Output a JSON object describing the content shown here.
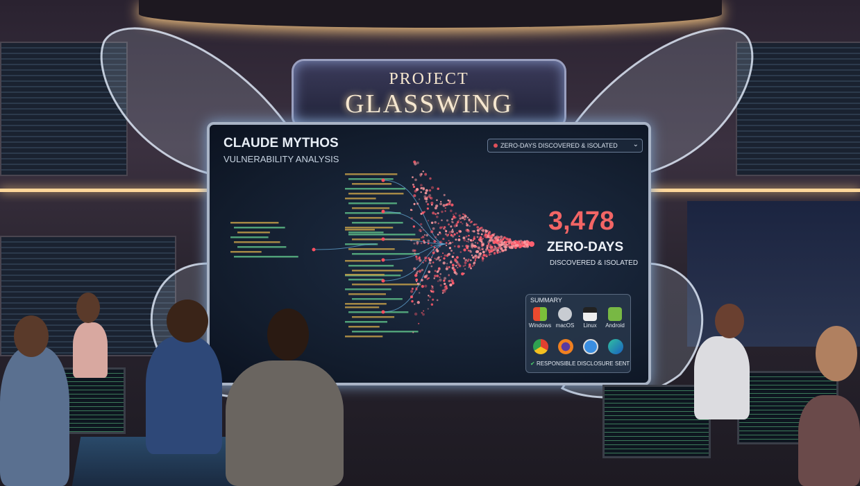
{
  "sign": {
    "line1": "PROJECT",
    "line2": "GLASSWING"
  },
  "screen": {
    "title": "CLAUDE MYTHOS",
    "subtitle": "VULNERABILITY ANALYSIS",
    "dropdown": {
      "label": "ZERO-DAYS DISCOVERED & ISOLATED",
      "icon": "chevron-down-icon"
    },
    "stat": {
      "value": "3,478",
      "label": "ZERO-DAYS",
      "sublabel": "DISCOVERED & ISOLATED"
    },
    "summary": {
      "title": "SUMMARY",
      "os": [
        {
          "label": "Windows",
          "icon": "windows-icon"
        },
        {
          "label": "macOS",
          "icon": "apple-icon"
        },
        {
          "label": "Linux",
          "icon": "linux-icon"
        },
        {
          "label": "Android",
          "icon": "android-icon"
        }
      ],
      "browsers": [
        {
          "icon": "chrome-icon"
        },
        {
          "icon": "firefox-icon"
        },
        {
          "icon": "safari-icon"
        },
        {
          "icon": "edge-icon"
        }
      ],
      "status": "RESPONSIBLE DISCLOSURE SENT"
    }
  },
  "colors": {
    "accent_red": "#f26565",
    "screen_bg": "#121c2c",
    "glow": "#ffd79a"
  }
}
